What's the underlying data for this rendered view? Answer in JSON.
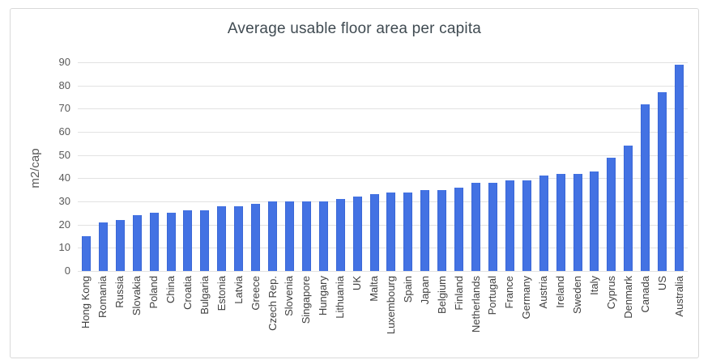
{
  "chart_data": {
    "type": "bar",
    "title": "Average usable floor area per capita",
    "xlabel": "",
    "ylabel": "m2/cap",
    "ylim": [
      0,
      90
    ],
    "ytick_step": 10,
    "ytick_labels": [
      "0",
      "10",
      "20",
      "30",
      "40",
      "50",
      "60",
      "70",
      "80",
      "90"
    ],
    "grid": "horizontal",
    "legend": "none",
    "bar_color": "#4372e3",
    "gridline_color": "#e2e2e2",
    "categories": [
      "Hong Kong",
      "Romania",
      "Russia",
      "Slovakia",
      "Poland",
      "China",
      "Croatia",
      "Bulgaria",
      "Estonia",
      "Latvia",
      "Greece",
      "Czech Rep.",
      "Slovenia",
      "Singapore",
      "Hungary",
      "Lithuania",
      "UK",
      "Malta",
      "Luxembourg",
      "Spain",
      "Japan",
      "Belgium",
      "Finland",
      "Netherlands",
      "Portugal",
      "France",
      "Germany",
      "Austria",
      "Ireland",
      "Sweden",
      "Italy",
      "Cyprus",
      "Denmark",
      "Canada",
      "US",
      "Australia"
    ],
    "values": [
      15,
      21,
      22,
      24,
      25,
      25,
      26,
      26,
      28,
      28,
      29,
      30,
      30,
      30,
      30,
      31,
      32,
      33,
      34,
      34,
      35,
      35,
      36,
      38,
      38,
      39,
      39,
      41,
      42,
      42,
      43,
      49,
      54,
      72,
      77,
      89
    ]
  }
}
